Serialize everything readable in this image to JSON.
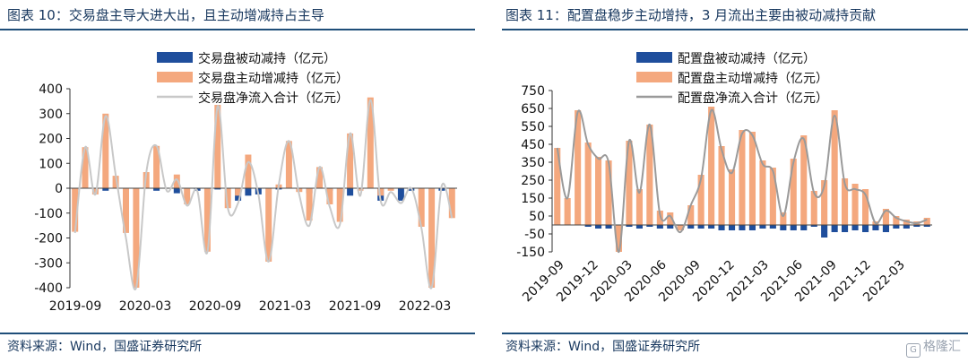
{
  "charts": [
    {
      "title": "图表 10：交易盘主导大进大出，且主动增减持占主导",
      "source": "资料来源：Wind，国盛证券研究所",
      "chart_data": {
        "type": "bar",
        "series": [
          {
            "name": "交易盘被动减持（亿元）",
            "kind": "bar",
            "color": "#1f4e9c",
            "values": [
              -5,
              0,
              0,
              -10,
              0,
              -20,
              0,
              0,
              -10,
              0,
              -20,
              0,
              -10,
              0,
              -5,
              0,
              -50,
              -30,
              -25,
              0,
              -5,
              0,
              0,
              -20,
              0,
              -10,
              0,
              -30,
              0,
              0,
              -50,
              0,
              -50,
              -10,
              0,
              0,
              -10,
              0
            ]
          },
          {
            "name": "交易盘主动增减持（亿元）",
            "kind": "bar",
            "color": "#f4a87e",
            "values": [
              -175,
              165,
              -25,
              300,
              50,
              -180,
              -400,
              65,
              170,
              0,
              55,
              -65,
              0,
              -255,
              335,
              -80,
              -30,
              135,
              0,
              -295,
              15,
              190,
              -15,
              -130,
              85,
              -65,
              -135,
              220,
              -10,
              365,
              -30,
              -10,
              0,
              0,
              -155,
              -400,
              0,
              -120
            ]
          },
          {
            "name": "交易盘净流入合计（亿元）",
            "kind": "line",
            "color": "#c8c8c8",
            "values": [
              -180,
              165,
              -25,
              290,
              50,
              -200,
              -400,
              65,
              170,
              -10,
              35,
              -70,
              -10,
              -255,
              330,
              -80,
              -60,
              105,
              -25,
              -295,
              15,
              190,
              -25,
              -150,
              85,
              -75,
              -145,
              220,
              -30,
              355,
              -50,
              -15,
              -60,
              0,
              -160,
              -400,
              10,
              -120
            ]
          }
        ],
        "categories_shown": [
          "2019-09",
          "2020-03",
          "2020-09",
          "2021-03",
          "2021-09",
          "2022-03"
        ],
        "ylim": [
          -400,
          400
        ],
        "yticks": [
          400,
          300,
          200,
          100,
          0,
          -100,
          -200,
          -300,
          -400
        ],
        "legend_position": "top"
      }
    },
    {
      "title": "图表 11：配置盘稳步主动增持，3 月流出主要由被动减持贡献",
      "source": "资料来源：Wind，国盛证券研究所",
      "chart_data": {
        "type": "bar",
        "series": [
          {
            "name": "配置盘被动减持（亿元）",
            "kind": "bar",
            "color": "#1f4e9c",
            "values": [
              0,
              0,
              0,
              -10,
              -20,
              -20,
              -20,
              -10,
              -20,
              -10,
              -20,
              -20,
              -30,
              -20,
              -20,
              -20,
              -30,
              -30,
              -30,
              -30,
              -20,
              -20,
              -30,
              -30,
              -30,
              -10,
              -70,
              -40,
              -40,
              -30,
              -40,
              -30,
              -40,
              -20,
              -20,
              -10,
              -10
            ]
          },
          {
            "name": "配置盘主动增减持（亿元）",
            "kind": "bar",
            "color": "#f4a87e",
            "values": [
              430,
              150,
              640,
              460,
              380,
              360,
              -150,
              470,
              200,
              560,
              80,
              70,
              -30,
              110,
              280,
              660,
              440,
              310,
              530,
              520,
              360,
              320,
              70,
              370,
              500,
              190,
              250,
              640,
              260,
              230,
              200,
              20,
              90,
              50,
              30,
              20,
              40
            ]
          },
          {
            "name": "配置盘净流入合计（亿元）",
            "kind": "line",
            "color": "#9a9a9a",
            "values": [
              430,
              150,
              630,
              450,
              370,
              350,
              -150,
              470,
              180,
              560,
              60,
              50,
              -40,
              110,
              260,
              640,
              420,
              290,
              510,
              500,
              340,
              300,
              50,
              350,
              480,
              180,
              220,
              610,
              230,
              200,
              170,
              10,
              80,
              40,
              20,
              10,
              30
            ]
          }
        ],
        "categories_shown": [
          "2019-09",
          "2019-12",
          "2020-03",
          "2020-06",
          "2020-09",
          "2020-12",
          "2021-03",
          "2021-06",
          "2021-09",
          "2021-12",
          "2022-03"
        ],
        "ylim": [
          -150,
          750
        ],
        "yticks": [
          750,
          650,
          550,
          450,
          350,
          250,
          150,
          50,
          -50,
          -150
        ],
        "legend_position": "top"
      }
    }
  ],
  "watermark": "格隆汇",
  "watermark_icon": "G"
}
